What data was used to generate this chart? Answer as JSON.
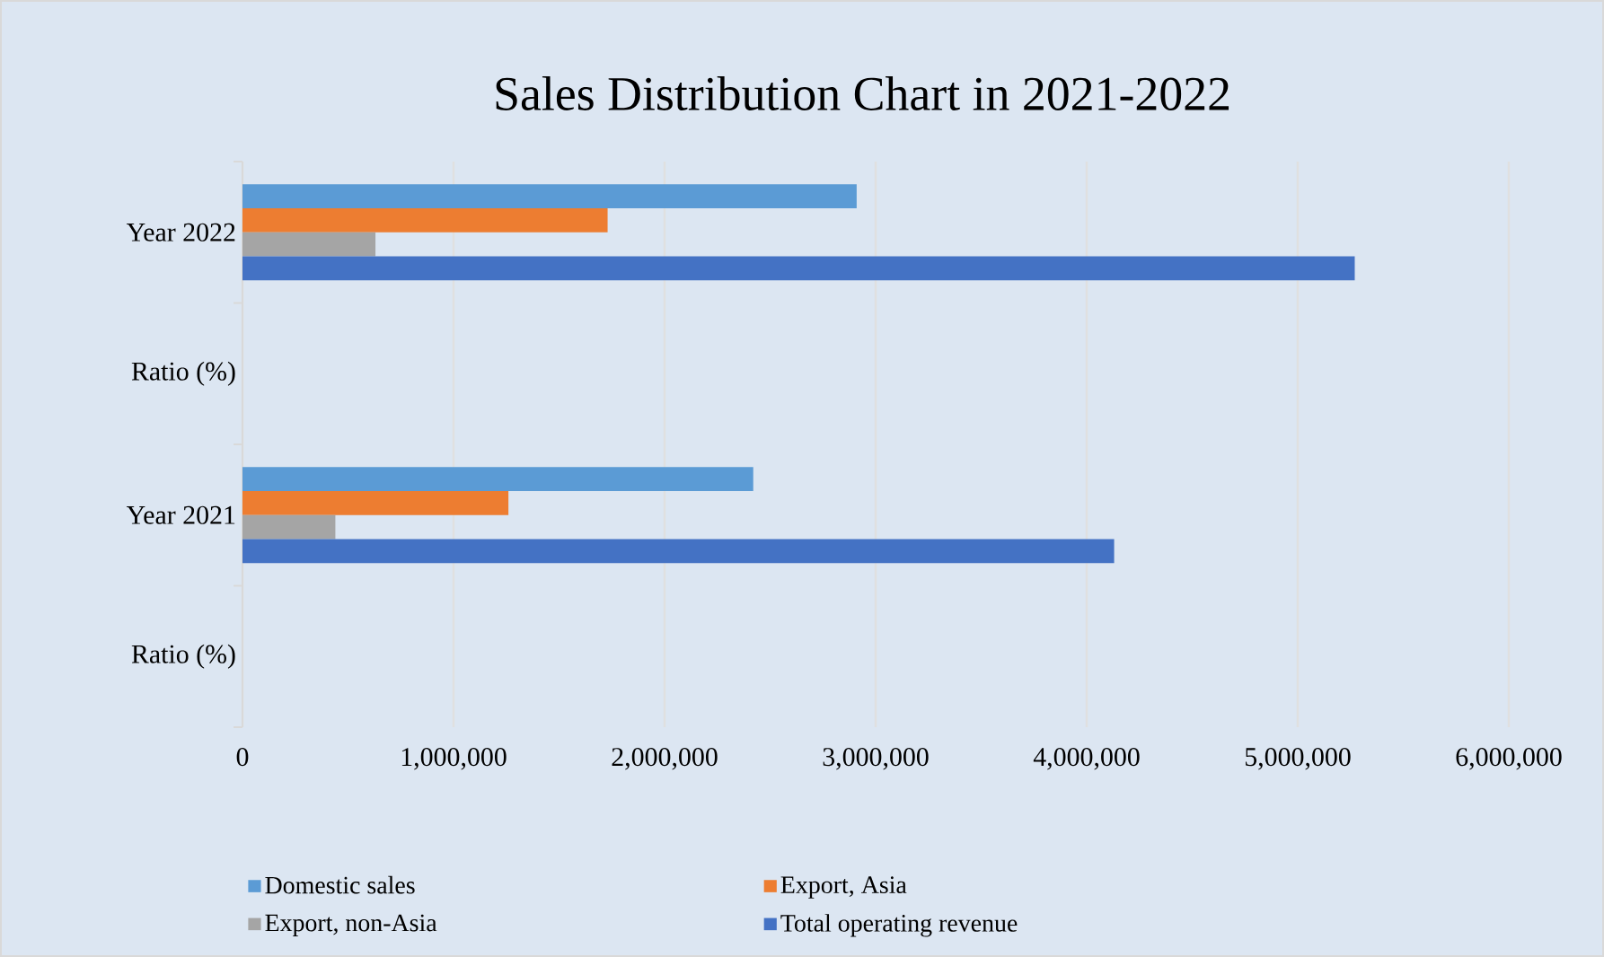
{
  "chart_data": {
    "type": "bar",
    "orientation": "horizontal",
    "title": "Sales Distribution Chart in 2021-2022",
    "categories": [
      "Year 2022",
      "Ratio (%)",
      "Year 2021",
      "Ratio (%)"
    ],
    "series": [
      {
        "name": "Domestic sales",
        "color": "#5b9bd5",
        "values": [
          2910000,
          null,
          2420000,
          null
        ]
      },
      {
        "name": "Export, Asia",
        "color": "#ed7d31",
        "values": [
          1730000,
          null,
          1260000,
          null
        ]
      },
      {
        "name": "Export, non-Asia",
        "color": "#a5a5a5",
        "values": [
          630000,
          null,
          440000,
          null
        ]
      },
      {
        "name": "Total operating revenue",
        "color": "#4472c4",
        "values": [
          5270000,
          null,
          4130000,
          null
        ]
      }
    ],
    "xlim": [
      0,
      6000000
    ],
    "xticks": [
      0,
      {
        "value": 1000000,
        "label": "1,000,000"
      },
      {
        "value": 2000000,
        "label": "2,000,000"
      },
      {
        "value": 3000000,
        "label": "3,000,000"
      },
      {
        "value": 4000000,
        "label": "4,000,000"
      },
      {
        "value": 5000000,
        "label": "5,000,000"
      },
      {
        "value": 6000000,
        "label": "6,000,000"
      }
    ],
    "grid": "x",
    "legend": "bottom"
  }
}
